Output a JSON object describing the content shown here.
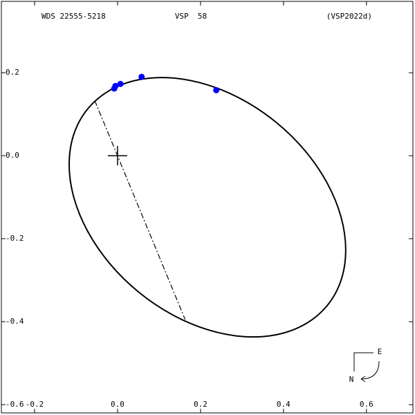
{
  "chart_data": {
    "type": "scatter",
    "title_left": "WDS 22555-5218",
    "title_center": "VSP  58",
    "title_right": "(VSP2022d)",
    "xlim": [
      -0.28,
      0.712
    ],
    "ylim": [
      -0.62,
      0.372
    ],
    "xticks": [
      -0.2,
      {
        "value": 0,
        "label": "0.0"
      },
      0.2,
      0.4,
      0.6
    ],
    "yticks": [
      0.2,
      {
        "value": 0,
        "label": "0.0"
      },
      -0.2,
      -0.4,
      -0.6
    ],
    "orbit": {
      "x": [
        0.55,
        0.5387,
        0.5054,
        0.4524,
        0.3834,
        0.303,
        0.2167,
        0.1304,
        0.05,
        -0.019,
        -0.072,
        -0.1053,
        -0.1166,
        -0.1053,
        -0.072,
        -0.019,
        0.05,
        0.1304,
        0.2167,
        0.303,
        0.3834,
        0.4524,
        0.5054,
        0.5387,
        0.55
      ],
      "y": [
        -0.2275,
        -0.1476,
        -0.0662,
        0.0114,
        0.0796,
        0.134,
        0.1708,
        0.1876,
        0.183,
        0.1574,
        0.1128,
        0.052,
        -0.0209,
        -0.1008,
        -0.1822,
        -0.2598,
        -0.328,
        -0.3824,
        -0.4192,
        -0.436,
        -0.4314,
        -0.4058,
        -0.3612,
        -0.3004,
        -0.2275
      ],
      "color": "#000000"
    },
    "node_line": {
      "x": [
        -0.055,
        0.163
      ],
      "y": [
        0.133,
        -0.395
      ],
      "color": "#000000"
    },
    "primary": {
      "x": 0,
      "y": 0
    },
    "series": [
      {
        "color": "#0000ff",
        "x": [
          -0.008,
          -0.005,
          0.007,
          0.058,
          0.238
        ],
        "y": [
          0.162,
          0.168,
          0.173,
          0.19,
          0.158
        ]
      }
    ],
    "compass": {
      "east": "E",
      "north": "N"
    }
  }
}
